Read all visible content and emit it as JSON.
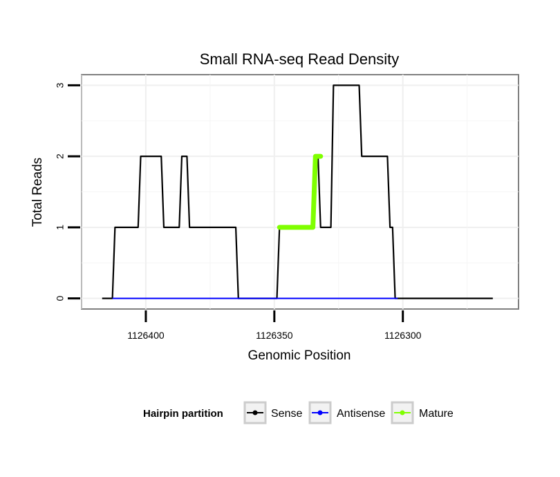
{
  "chart_data": {
    "type": "line",
    "title": "Small RNA-seq Read Density",
    "xlabel": "Genomic Position",
    "ylabel": "Total Reads",
    "x_reversed": true,
    "xlim": [
      1126425,
      1126255
    ],
    "ylim": [
      -0.15,
      3.15
    ],
    "xticks": [
      1126400,
      1126350,
      1126300
    ],
    "xtick_labels": [
      "1126400",
      "1126350",
      "1126300"
    ],
    "yticks": [
      0,
      1,
      2,
      3
    ],
    "ytick_labels": [
      "0",
      "1",
      "2",
      "3"
    ],
    "grid": true,
    "legend": {
      "title": "Hairpin partition",
      "position": "bottom",
      "entries": [
        {
          "label": "Sense",
          "color": "#000000"
        },
        {
          "label": "Antisense",
          "color": "#0000ff"
        },
        {
          "label": "Mature",
          "color": "#7fff00"
        }
      ]
    },
    "series": [
      {
        "name": "Sense",
        "color": "#000000",
        "x": [
          1126417,
          1126413,
          1126412,
          1126403,
          1126402,
          1126394,
          1126393,
          1126387,
          1126386,
          1126384,
          1126383,
          1126365,
          1126364,
          1126349,
          1126348,
          1126335,
          1126334,
          1126333,
          1126332,
          1126328,
          1126327,
          1126317,
          1126316,
          1126306,
          1126305,
          1126304,
          1126303,
          1126302,
          1126265
        ],
        "y": [
          0,
          0,
          1,
          1,
          2,
          2,
          1,
          1,
          2,
          2,
          1,
          1,
          0,
          0,
          1,
          1,
          2,
          2,
          1,
          1,
          3,
          3,
          2,
          2,
          1,
          1,
          0,
          0,
          0
        ]
      },
      {
        "name": "Antisense",
        "color": "#0000ff",
        "x": [
          1126413,
          1126302
        ],
        "y": [
          0,
          0
        ]
      },
      {
        "name": "Mature",
        "color": "#7fff00",
        "x": [
          1126348,
          1126335,
          1126334,
          1126333,
          1126332
        ],
        "y": [
          1,
          1,
          2,
          2,
          2
        ]
      }
    ]
  }
}
